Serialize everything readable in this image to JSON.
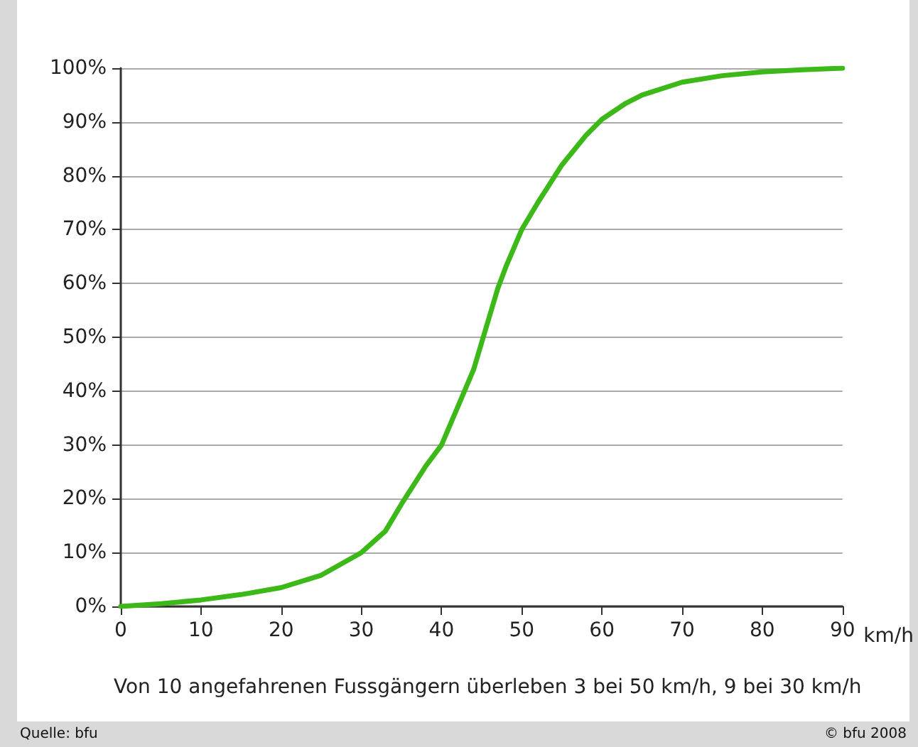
{
  "chart_data": {
    "type": "line",
    "xlabel": "km/h",
    "color": "#3cb818",
    "line_style": "solid",
    "marker": "none",
    "grid": "y",
    "x": [
      0,
      5,
      10,
      15,
      20,
      25,
      30,
      33,
      35,
      38,
      40,
      42,
      44,
      45,
      46,
      47,
      48,
      50,
      52,
      55,
      58,
      60,
      63,
      65,
      70,
      75,
      80,
      85,
      90
    ],
    "values": [
      0,
      0.5,
      1.2,
      2.2,
      3.5,
      5.8,
      10,
      14,
      19,
      26,
      30,
      37,
      44,
      49,
      54,
      59,
      63,
      70,
      75,
      82,
      87.5,
      90.5,
      93.5,
      95,
      97.4,
      98.6,
      99.3,
      99.7,
      100
    ],
    "xlim": [
      0,
      90
    ],
    "xticks": [
      0,
      10,
      20,
      30,
      40,
      50,
      60,
      70,
      80,
      90
    ],
    "ylim": [
      0,
      100
    ],
    "yticks": [
      {
        "value": 0,
        "label": "0%"
      },
      {
        "value": 10,
        "label": "10%"
      },
      {
        "value": 20,
        "label": "20%"
      },
      {
        "value": 30,
        "label": "30%"
      },
      {
        "value": 40,
        "label": "40%"
      },
      {
        "value": 50,
        "label": "50%"
      },
      {
        "value": 60,
        "label": "60%"
      },
      {
        "value": 70,
        "label": "70%"
      },
      {
        "value": 80,
        "label": "80%"
      },
      {
        "value": 90,
        "label": "90%"
      },
      {
        "value": 100,
        "label": "100%"
      }
    ],
    "annotations": [
      "Von 10 angefahrenen Fussgängern überleben 3 bei 50 km/h, 9 bei 30 km/h",
      "Quelle: bfu",
      "© bfu 2008"
    ]
  }
}
